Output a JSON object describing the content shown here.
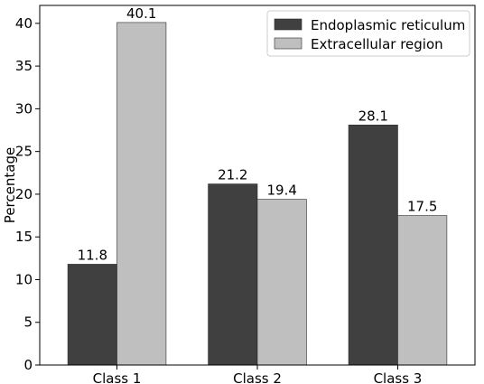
{
  "chart_data": {
    "type": "bar",
    "categories": [
      "Class 1",
      "Class 2",
      "Class 3"
    ],
    "series": [
      {
        "name": "Endoplasmic reticulum",
        "values": [
          11.8,
          21.2,
          28.1
        ],
        "color": "#404040"
      },
      {
        "name": "Extracellular region",
        "values": [
          40.1,
          19.4,
          17.5
        ],
        "color": "#bfbfbf"
      }
    ],
    "data_labels": [
      [
        "11.8",
        "21.2",
        "28.1"
      ],
      [
        "40.1",
        "19.4",
        "17.5"
      ]
    ],
    "title": "",
    "xlabel": "",
    "ylabel": "Percentage",
    "ylim": [
      0,
      42.1
    ],
    "yticks": [
      0,
      5,
      10,
      15,
      20,
      25,
      30,
      35,
      40
    ],
    "grid": false,
    "legend": "top-right"
  }
}
